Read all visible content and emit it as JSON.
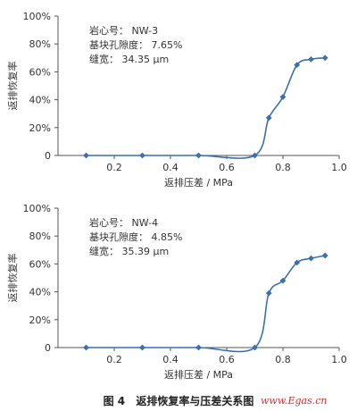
{
  "chart_data": [
    {
      "type": "line",
      "annotation": [
        "岩心号：  NW-3",
        "基块孔隙度：  7.65%",
        "缝宽：  34.35 μm"
      ],
      "xlabel": "返排压差 / MPa",
      "ylabel": "返排恢复率",
      "xlim": [
        0,
        1.0
      ],
      "ylim": [
        0,
        100
      ],
      "xticks": [
        "0.2",
        "0.4",
        "0.6",
        "0.8",
        "1.0"
      ],
      "yticks": [
        "0",
        "20%",
        "40%",
        "60%",
        "80%",
        "100%"
      ],
      "x": [
        0.1,
        0.3,
        0.5,
        0.7,
        0.75,
        0.8,
        0.85,
        0.9,
        0.95
      ],
      "y": [
        0,
        0,
        0,
        0,
        27,
        42,
        65,
        69,
        70
      ],
      "color": "#3a6fb0",
      "grid": false
    },
    {
      "type": "line",
      "annotation": [
        "岩心号：  NW-4",
        "基块孔隙度：  4.85%",
        "缝宽：  35.39 μm"
      ],
      "xlabel": "返排压差 / MPa",
      "ylabel": "返排恢复率",
      "xlim": [
        0,
        1.0
      ],
      "ylim": [
        0,
        100
      ],
      "xticks": [
        "0.2",
        "0.4",
        "0.6",
        "0.8",
        "1.0"
      ],
      "yticks": [
        "0",
        "20%",
        "40%",
        "60%",
        "80%",
        "100%"
      ],
      "x": [
        0.1,
        0.3,
        0.5,
        0.7,
        0.75,
        0.8,
        0.85,
        0.9,
        0.95
      ],
      "y": [
        0,
        0,
        0,
        0,
        39,
        48,
        61,
        64,
        66
      ],
      "color": "#3a6fb0",
      "grid": false
    }
  ],
  "figure_caption": {
    "number": "图 4",
    "title": "返排恢复率与压差关系图"
  },
  "watermark": "www.Egas.cn"
}
